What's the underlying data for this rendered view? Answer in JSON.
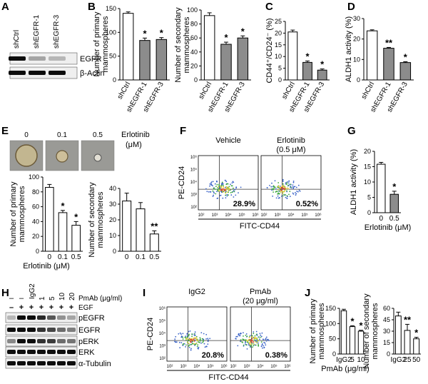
{
  "panel_labels": [
    "A",
    "B",
    "C",
    "D",
    "E",
    "F",
    "G",
    "H",
    "I",
    "J"
  ],
  "colors": {
    "ctrl": "#ffffff",
    "treated": "#8c8c8c",
    "dot_green": "#39a83a",
    "dot_blue": "#3a63c8",
    "dot_yellow": "#e9d23a",
    "dot_red": "#d6402c"
  },
  "panelA": {
    "lanes": [
      "shCtrl",
      "shEGFR-1",
      "shEGFR-3"
    ],
    "rows": [
      "EGFR",
      "β-Actin"
    ],
    "intensity": {
      "EGFR": [
        1.0,
        0.2,
        0.1
      ],
      "β-Actin": [
        1.0,
        1.0,
        1.0
      ]
    }
  },
  "panelE": {
    "doses": [
      "0",
      "0.1",
      "0.5"
    ],
    "treatment": "Erlotinib",
    "unit": "(μM)"
  },
  "panelF": {
    "conditions": [
      "Vehicle",
      "Erlotinib"
    ],
    "condition_sub": [
      "",
      "(0.5 μM)"
    ],
    "percents": [
      "28.9%",
      "0.52%"
    ],
    "xlabel": "FITC-CD44",
    "ylabel": "PE-CD24",
    "ticks": [
      "10²",
      "10³",
      "10⁴",
      "10⁵",
      "10⁶"
    ]
  },
  "panelH": {
    "header_pmab": "PmAb (μg/ml)",
    "header_egf": "EGF",
    "pmab_vals": [
      "–",
      "–",
      "IgG2",
      "1",
      "5",
      "10",
      "20"
    ],
    "egf_vals": [
      "–",
      "+",
      "+",
      "+",
      "+",
      "+",
      "+"
    ],
    "rows": [
      "pEGFR",
      "EGFR",
      "pERK",
      "ERK",
      "α-Tubulin"
    ],
    "intensity": {
      "pEGFR": [
        0.1,
        1.0,
        1.0,
        0.85,
        0.6,
        0.3,
        0.2
      ],
      "EGFR": [
        1.0,
        1.0,
        1.0,
        0.8,
        0.7,
        0.5,
        0.4
      ],
      "pERK": [
        0.35,
        1.0,
        1.0,
        0.8,
        0.75,
        0.5,
        0.45
      ],
      "ERK": [
        1.0,
        1.0,
        1.0,
        1.0,
        1.0,
        1.0,
        1.0
      ],
      "α-Tubulin": [
        1.0,
        1.0,
        1.0,
        1.0,
        1.0,
        1.0,
        1.0
      ]
    }
  },
  "panelI": {
    "conditions": [
      "IgG2",
      "PmAb"
    ],
    "condition_sub": [
      "",
      "(20 μg/ml)"
    ],
    "percents": [
      "20.8%",
      "0.38%"
    ],
    "xlabel": "FITC-CD44",
    "ylabel": "PE-CD24",
    "ticks": [
      "10²",
      "10³",
      "10⁴",
      "10⁵",
      "10⁶"
    ]
  },
  "chart_data": [
    {
      "id": "B1",
      "type": "bar",
      "ylabel": "Number of primary mammospheres",
      "categories": [
        "shCtrl",
        "shEGFR-1",
        "shEGFR-3"
      ],
      "values": [
        140,
        83,
        85
      ],
      "errors": [
        3,
        5,
        4
      ],
      "ylim": [
        0,
        150
      ],
      "yticks": [
        "0",
        "50",
        "100",
        "150"
      ],
      "sig": [
        "",
        "*",
        "*"
      ],
      "fill": [
        "ctrl",
        "treated",
        "treated"
      ]
    },
    {
      "id": "B2",
      "type": "bar",
      "ylabel": "Number of secondary mammospheres",
      "categories": [
        "shCtrl",
        "shEGFR-1",
        "shEGFR-3"
      ],
      "values": [
        92,
        51,
        60
      ],
      "errors": [
        4,
        3,
        3
      ],
      "ylim": [
        0,
        100
      ],
      "yticks": [
        "0",
        "20",
        "40",
        "60",
        "80",
        "100"
      ],
      "sig": [
        "",
        "*",
        "*"
      ],
      "fill": [
        "ctrl",
        "treated",
        "treated"
      ]
    },
    {
      "id": "C",
      "type": "bar",
      "ylabel": "CD44⁺/CD24⁻ (%)",
      "categories": [
        "shCtrl",
        "shEGFR-1",
        "shEGFR-3"
      ],
      "values": [
        20.5,
        7.5,
        4.2
      ],
      "errors": [
        0.8,
        0.6,
        0.5
      ],
      "ylim": [
        0,
        25
      ],
      "yticks": [
        "0",
        "5",
        "10",
        "15",
        "20",
        "25"
      ],
      "sig": [
        "",
        "*",
        "*"
      ],
      "fill": [
        "ctrl",
        "treated",
        "treated"
      ]
    },
    {
      "id": "D",
      "type": "bar",
      "ylabel": "ALDH1 activity (%)",
      "categories": [
        "shCtrl",
        "shEGFR-1",
        "shEGFR-3"
      ],
      "values": [
        24,
        15.5,
        8.5
      ],
      "errors": [
        0.5,
        0.4,
        0.4
      ],
      "ylim": [
        0,
        30
      ],
      "yticks": [
        "0",
        "10",
        "20",
        "30"
      ],
      "sig": [
        "",
        "**",
        "*"
      ],
      "fill": [
        "ctrl",
        "treated",
        "treated"
      ]
    },
    {
      "id": "E1",
      "type": "bar",
      "ylabel": "Number of primary mammospheres",
      "xlabel": "Erlotinib (μM)",
      "categories": [
        "0",
        "0.1",
        "0.5"
      ],
      "values": [
        86,
        52,
        35
      ],
      "errors": [
        4,
        3,
        5
      ],
      "ylim": [
        0,
        100
      ],
      "yticks": [
        "0",
        "20",
        "40",
        "60",
        "80",
        "100"
      ],
      "sig": [
        "",
        "*",
        "*"
      ],
      "fill": [
        "ctrl",
        "ctrl",
        "ctrl"
      ]
    },
    {
      "id": "E2",
      "type": "bar",
      "ylabel": "Number of secondary mammospheres",
      "xlabel": "Erlotinib (μM)",
      "categories": [
        "0",
        "0.1",
        "0.5"
      ],
      "values": [
        32,
        27,
        11
      ],
      "errors": [
        5,
        4,
        2
      ],
      "ylim": [
        0,
        40
      ],
      "yticks": [
        "0",
        "10",
        "20",
        "30",
        "40"
      ],
      "sig": [
        "",
        "",
        "**"
      ],
      "fill": [
        "ctrl",
        "ctrl",
        "ctrl"
      ]
    },
    {
      "id": "G",
      "type": "bar",
      "ylabel": "ALDH1 activity (%)",
      "xlabel": "Erlotinib (μM)",
      "categories": [
        "0",
        "0.5"
      ],
      "values": [
        15.8,
        6
      ],
      "errors": [
        0.6,
        1
      ],
      "ylim": [
        0,
        20
      ],
      "yticks": [
        "0",
        "5",
        "10",
        "15",
        "20"
      ],
      "sig": [
        "",
        "*"
      ],
      "fill": [
        "ctrl",
        "treated"
      ]
    },
    {
      "id": "J1",
      "type": "bar",
      "ylabel": "Number of primary mammospheres",
      "xlabel": "PmAb (μg/ml)",
      "categories": [
        "IgG2",
        "5",
        "10"
      ],
      "values": [
        142,
        90,
        75
      ],
      "errors": [
        5,
        3,
        3
      ],
      "ylim": [
        0,
        150
      ],
      "yticks": [
        "0",
        "50",
        "100",
        "150"
      ],
      "sig": [
        "",
        "*",
        "*"
      ],
      "fill": [
        "ctrl",
        "ctrl",
        "ctrl"
      ]
    },
    {
      "id": "J2",
      "type": "bar",
      "ylabel": "Number of secondary mammospheres",
      "xlabel": "PmAb (μg/ml)",
      "categories": [
        "IgG2",
        "25",
        "50"
      ],
      "values": [
        50,
        31,
        20
      ],
      "errors": [
        5,
        8,
        2
      ],
      "ylim": [
        0,
        60
      ],
      "yticks": [
        "0",
        "15",
        "30",
        "45",
        "60"
      ],
      "sig": [
        "",
        "**",
        "*"
      ],
      "fill": [
        "ctrl",
        "ctrl",
        "ctrl"
      ]
    }
  ]
}
